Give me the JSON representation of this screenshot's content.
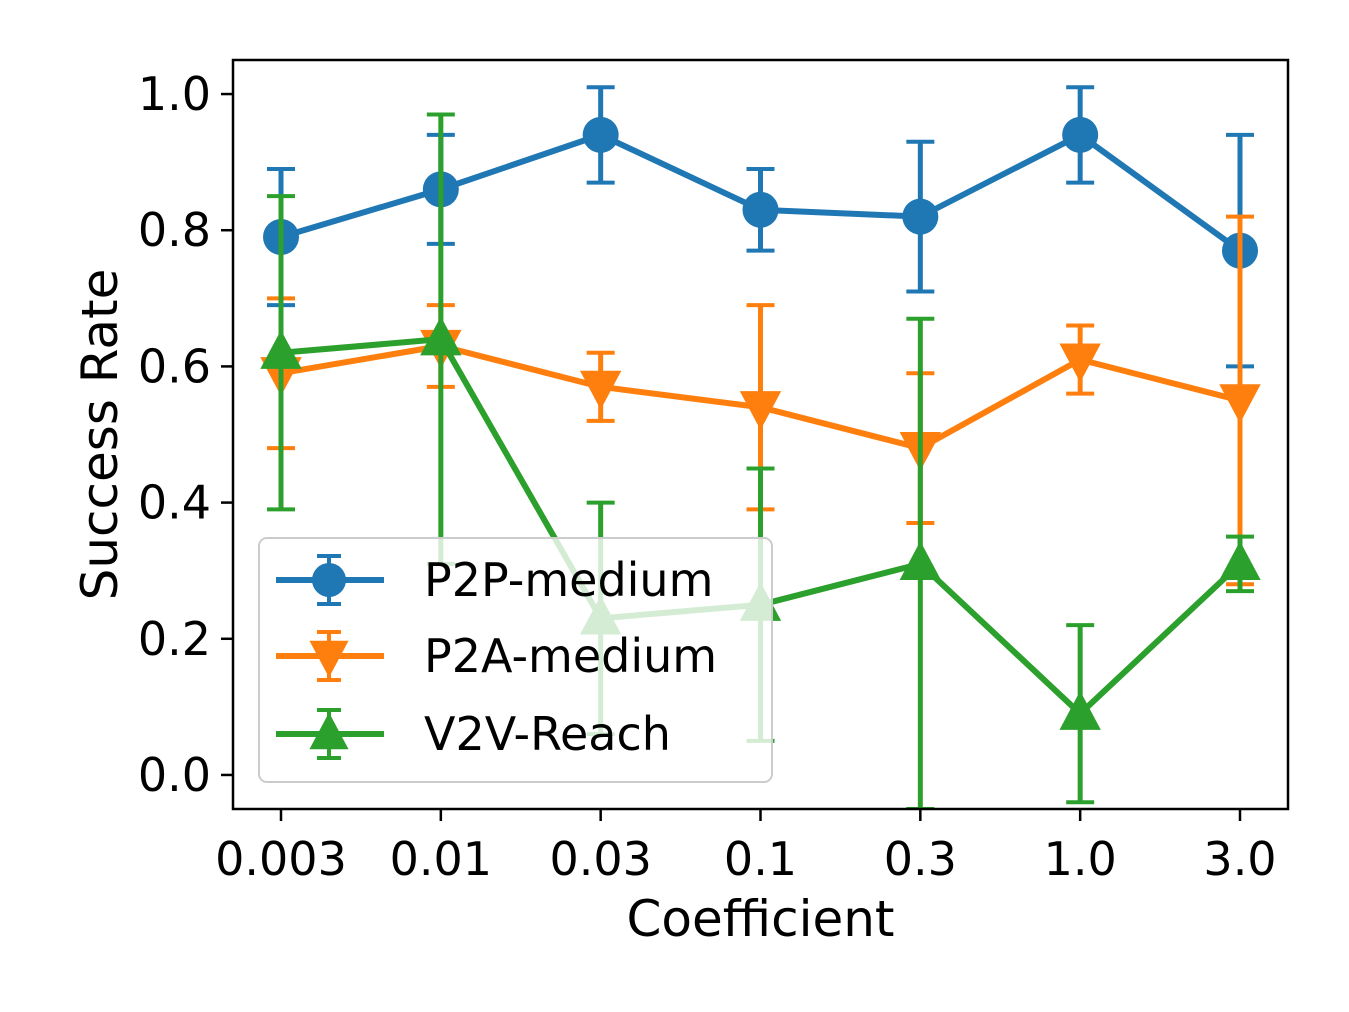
{
  "chart_data": {
    "type": "line",
    "title": "",
    "xlabel": "Coefficient",
    "ylabel": "Success Rate",
    "categories": [
      "0.003",
      "0.01",
      "0.03",
      "0.1",
      "0.3",
      "1.0",
      "3.0"
    ],
    "ylim": [
      -0.05,
      1.05
    ],
    "yticks": [
      "0.0",
      "0.2",
      "0.4",
      "0.6",
      "0.8",
      "1.0"
    ],
    "grid": false,
    "legend_position": "lower-left",
    "series": [
      {
        "name": "P2P-medium",
        "color": "#1f77b4",
        "marker": "circle",
        "values": [
          0.79,
          0.86,
          0.94,
          0.83,
          0.82,
          0.94,
          0.77
        ],
        "error": [
          0.1,
          0.08,
          0.07,
          0.06,
          0.11,
          0.07,
          0.17
        ]
      },
      {
        "name": "P2A-medium",
        "color": "#ff7f0e",
        "marker": "triangle-down",
        "values": [
          0.59,
          0.63,
          0.57,
          0.54,
          0.48,
          0.61,
          0.55
        ],
        "error": [
          0.11,
          0.06,
          0.05,
          0.15,
          0.11,
          0.05,
          0.27
        ]
      },
      {
        "name": "V2V-Reach",
        "color": "#2ca02c",
        "marker": "triangle-up",
        "values": [
          0.62,
          0.64,
          0.23,
          0.25,
          0.31,
          0.09,
          0.31
        ],
        "error": [
          0.23,
          0.33,
          0.17,
          0.2,
          0.36,
          0.13,
          0.04
        ]
      }
    ]
  }
}
